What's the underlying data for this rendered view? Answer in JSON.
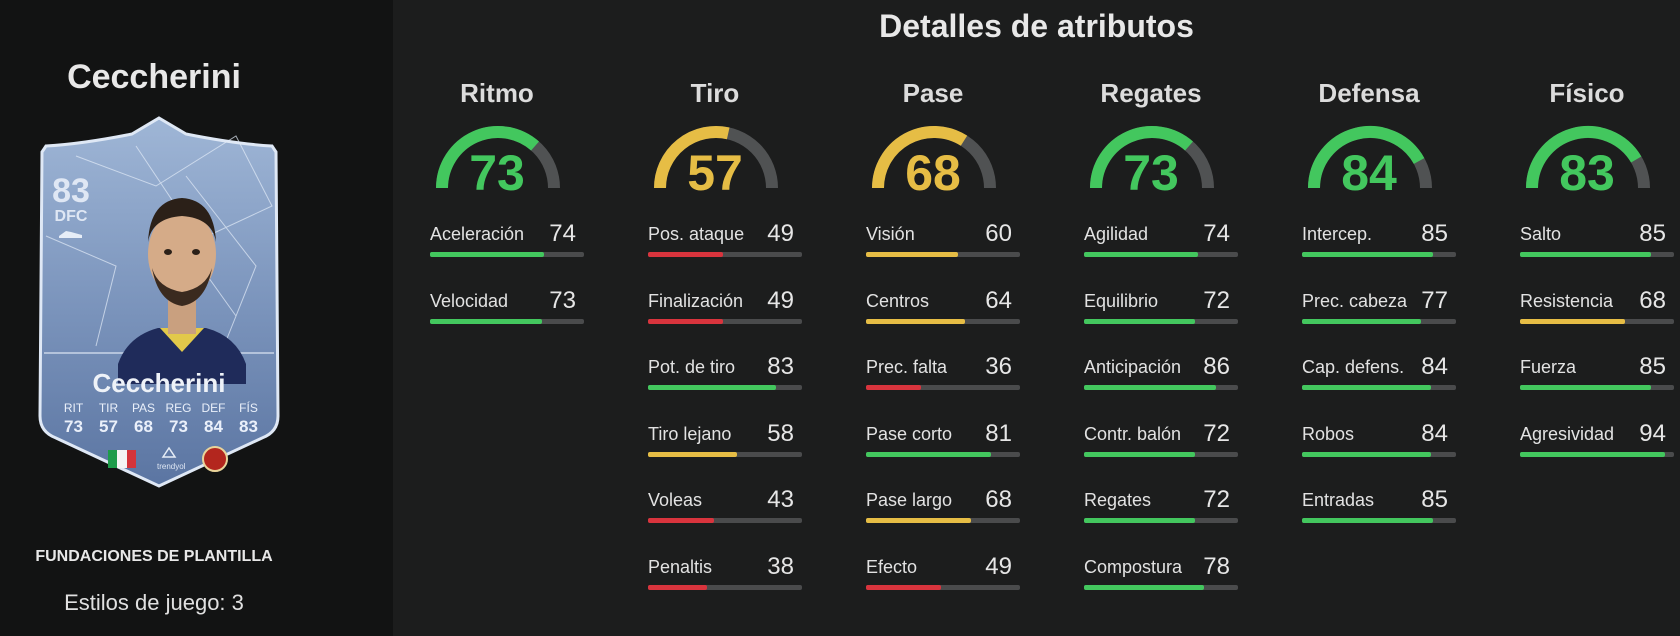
{
  "colors": {
    "green": "#43c75e",
    "yellow": "#e6bd45",
    "red": "#d9343d",
    "track": "#4a4b4c"
  },
  "player": {
    "title": "Ceccherini",
    "card": {
      "rating": "83",
      "position": "DFC",
      "name": "Ceccherini",
      "stats": [
        {
          "label": "RIT",
          "value": "73"
        },
        {
          "label": "TIR",
          "value": "57"
        },
        {
          "label": "PAS",
          "value": "68"
        },
        {
          "label": "REG",
          "value": "73"
        },
        {
          "label": "DEF",
          "value": "84"
        },
        {
          "label": "FÍS",
          "value": "83"
        }
      ],
      "league_text": "trendyol"
    },
    "squad_label": "FUNDACIONES DE PLANTILLA",
    "playstyles": "Estilos de juego: 3"
  },
  "main_title": "Detalles de atributos",
  "categories": [
    {
      "name": "Ritmo",
      "value": 73,
      "color": "green",
      "attributes": [
        {
          "name": "Aceleración",
          "value": 74,
          "color": "green"
        },
        {
          "name": "Velocidad",
          "value": 73,
          "color": "green"
        }
      ]
    },
    {
      "name": "Tiro",
      "value": 57,
      "color": "yellow",
      "attributes": [
        {
          "name": "Pos. ataque",
          "value": 49,
          "color": "red"
        },
        {
          "name": "Finalización",
          "value": 49,
          "color": "red"
        },
        {
          "name": "Pot. de tiro",
          "value": 83,
          "color": "green"
        },
        {
          "name": "Tiro lejano",
          "value": 58,
          "color": "yellow"
        },
        {
          "name": "Voleas",
          "value": 43,
          "color": "red"
        },
        {
          "name": "Penaltis",
          "value": 38,
          "color": "red"
        }
      ]
    },
    {
      "name": "Pase",
      "value": 68,
      "color": "yellow",
      "attributes": [
        {
          "name": "Visión",
          "value": 60,
          "color": "yellow"
        },
        {
          "name": "Centros",
          "value": 64,
          "color": "yellow"
        },
        {
          "name": "Prec. falta",
          "value": 36,
          "color": "red"
        },
        {
          "name": "Pase corto",
          "value": 81,
          "color": "green"
        },
        {
          "name": "Pase largo",
          "value": 68,
          "color": "yellow"
        },
        {
          "name": "Efecto",
          "value": 49,
          "color": "red"
        }
      ]
    },
    {
      "name": "Regates",
      "value": 73,
      "color": "green",
      "attributes": [
        {
          "name": "Agilidad",
          "value": 74,
          "color": "green"
        },
        {
          "name": "Equilibrio",
          "value": 72,
          "color": "green"
        },
        {
          "name": "Anticipación",
          "value": 86,
          "color": "green"
        },
        {
          "name": "Contr. balón",
          "value": 72,
          "color": "green"
        },
        {
          "name": "Regates",
          "value": 72,
          "color": "green"
        },
        {
          "name": "Compostura",
          "value": 78,
          "color": "green"
        }
      ]
    },
    {
      "name": "Defensa",
      "value": 84,
      "color": "green",
      "attributes": [
        {
          "name": "Intercep.",
          "value": 85,
          "color": "green"
        },
        {
          "name": "Prec. cabeza",
          "value": 77,
          "color": "green"
        },
        {
          "name": "Cap. defens.",
          "value": 84,
          "color": "green"
        },
        {
          "name": "Robos",
          "value": 84,
          "color": "green"
        },
        {
          "name": "Entradas",
          "value": 85,
          "color": "green"
        }
      ]
    },
    {
      "name": "Físico",
      "value": 83,
      "color": "green",
      "attributes": [
        {
          "name": "Salto",
          "value": 85,
          "color": "green"
        },
        {
          "name": "Resistencia",
          "value": 68,
          "color": "yellow"
        },
        {
          "name": "Fuerza",
          "value": 85,
          "color": "green"
        },
        {
          "name": "Agresividad",
          "value": 94,
          "color": "green"
        }
      ]
    }
  ]
}
